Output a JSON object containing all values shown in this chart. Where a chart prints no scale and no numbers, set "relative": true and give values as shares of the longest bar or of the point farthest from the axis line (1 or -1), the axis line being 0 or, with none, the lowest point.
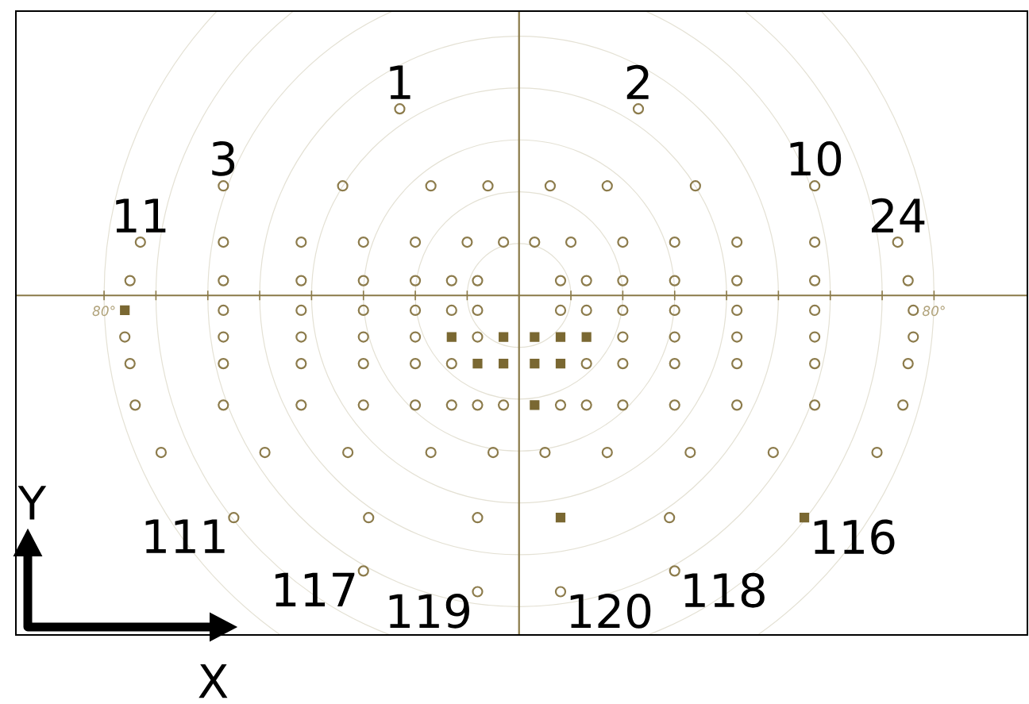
{
  "chart_data": {
    "type": "scatter",
    "xlabel": "X",
    "ylabel": "Y",
    "relative": true,
    "xlim": [
      -97,
      98
    ],
    "xticks": [
      {
        "value": -80,
        "label": "80°"
      },
      {
        "value": -70,
        "label": null
      },
      {
        "value": -60,
        "label": null
      },
      {
        "value": -50,
        "label": null
      },
      {
        "value": -40,
        "label": null
      },
      {
        "value": -30,
        "label": null
      },
      {
        "value": -20,
        "label": null
      },
      {
        "value": -10,
        "label": null
      },
      {
        "value": 10,
        "label": null
      },
      {
        "value": 20,
        "label": null
      },
      {
        "value": 30,
        "label": null
      },
      {
        "value": 40,
        "label": null
      },
      {
        "value": 50,
        "label": null
      },
      {
        "value": 60,
        "label": null
      },
      {
        "value": 70,
        "label": null
      },
      {
        "value": 80,
        "label": "80°"
      }
    ],
    "tick_labels": "x",
    "ref_lines": [
      {
        "axis": "x",
        "value": 0,
        "color": "#8a7a48"
      }
    ],
    "series": [
      {
        "color": "#8c7b4b",
        "marker": "circle",
        "x": [
          -23,
          23,
          -57,
          -34,
          -17,
          -6,
          6,
          17,
          34,
          57,
          -73,
          -57,
          -42,
          -30,
          -20,
          -10,
          -3,
          3,
          10,
          20,
          30,
          42,
          57,
          73,
          -75,
          -57,
          -42,
          -30,
          -20,
          -13,
          -8,
          8,
          13,
          20,
          30,
          42,
          57,
          75,
          -57,
          -42,
          -30,
          -20,
          -13,
          -8,
          8,
          13,
          20,
          30,
          42,
          57,
          76,
          -76,
          -57,
          -42,
          -30,
          -20,
          -8,
          20,
          30,
          42,
          57,
          76,
          -75,
          -57,
          -42,
          -30,
          -20,
          -13,
          13,
          20,
          30,
          42,
          57,
          75,
          -74,
          -57,
          -42,
          -30,
          -20,
          -13,
          -8,
          -3,
          8,
          13,
          20,
          30,
          42,
          57,
          74,
          -69,
          -49,
          -33,
          -17,
          -5,
          5,
          17,
          33,
          49,
          69,
          -55,
          -29,
          -8,
          29,
          -30,
          30,
          -8,
          8
        ],
        "values": [
          0.63,
          0.63,
          0.37,
          0.37,
          0.37,
          0.37,
          0.37,
          0.37,
          0.37,
          0.37,
          0.18,
          0.18,
          0.18,
          0.18,
          0.18,
          0.18,
          0.18,
          0.18,
          0.18,
          0.18,
          0.18,
          0.18,
          0.18,
          0.18,
          0.05,
          0.05,
          0.05,
          0.05,
          0.05,
          0.05,
          0.05,
          0.05,
          0.05,
          0.05,
          0.05,
          0.05,
          0.05,
          0.05,
          -0.05,
          -0.05,
          -0.05,
          -0.05,
          -0.05,
          -0.05,
          -0.05,
          -0.05,
          -0.05,
          -0.05,
          -0.05,
          -0.05,
          -0.05,
          -0.14,
          -0.14,
          -0.14,
          -0.14,
          -0.14,
          -0.14,
          -0.14,
          -0.14,
          -0.14,
          -0.14,
          -0.14,
          -0.23,
          -0.23,
          -0.23,
          -0.23,
          -0.23,
          -0.23,
          -0.23,
          -0.23,
          -0.23,
          -0.23,
          -0.23,
          -0.23,
          -0.37,
          -0.37,
          -0.37,
          -0.37,
          -0.37,
          -0.37,
          -0.37,
          -0.37,
          -0.37,
          -0.37,
          -0.37,
          -0.37,
          -0.37,
          -0.37,
          -0.37,
          -0.53,
          -0.53,
          -0.53,
          -0.53,
          -0.53,
          -0.53,
          -0.53,
          -0.53,
          -0.53,
          -0.53,
          -0.75,
          -0.75,
          -0.75,
          -0.75,
          -0.93,
          -0.93,
          -1,
          -1
        ]
      },
      {
        "color": "#7a6832",
        "marker": "square",
        "x": [
          -76,
          -13,
          -3,
          3,
          8,
          13,
          -8,
          -3,
          3,
          8,
          3,
          8,
          55
        ],
        "values": [
          -0.05,
          -0.14,
          -0.14,
          -0.14,
          -0.14,
          -0.14,
          -0.23,
          -0.23,
          -0.23,
          -0.23,
          -0.37,
          -0.75,
          -0.75
        ]
      }
    ],
    "annotations": [
      {
        "text": "1",
        "x": -23,
        "y": 0.63
      },
      {
        "text": "2",
        "x": 23,
        "y": 0.63
      },
      {
        "text": "3",
        "x": -57,
        "y": 0.37
      },
      {
        "text": "10",
        "x": 57,
        "y": 0.37
      },
      {
        "text": "11",
        "x": -73,
        "y": 0.18
      },
      {
        "text": "24",
        "x": 73,
        "y": 0.18
      },
      {
        "text": "111",
        "x": -55,
        "y": -0.75
      },
      {
        "text": "116",
        "x": 55,
        "y": -0.75
      },
      {
        "text": "117",
        "x": -30,
        "y": -0.93
      },
      {
        "text": "118",
        "x": 30,
        "y": -0.93
      },
      {
        "text": "119",
        "x": -8,
        "y": -1
      },
      {
        "text": "120",
        "x": 8,
        "y": -1
      }
    ]
  }
}
